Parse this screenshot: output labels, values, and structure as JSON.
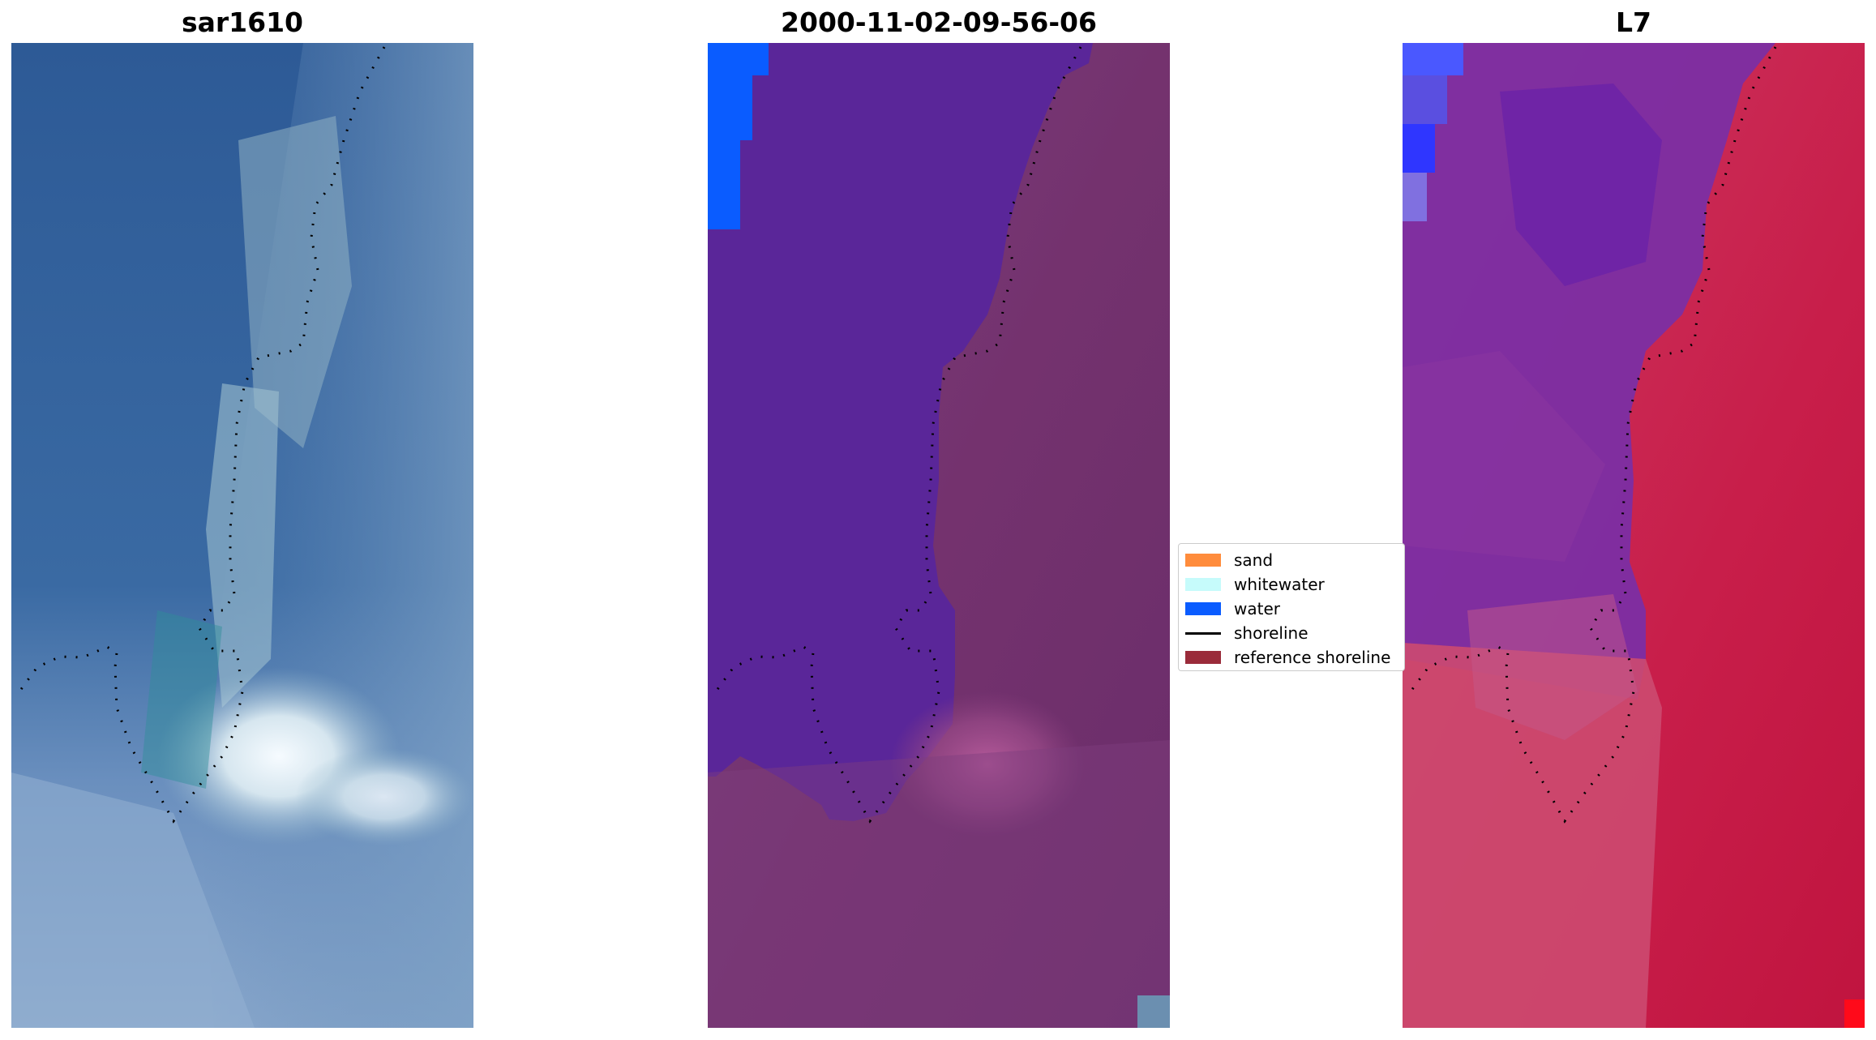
{
  "panels": [
    {
      "title": "sar1610"
    },
    {
      "title": "2000-11-02-09-56-06"
    },
    {
      "title": "L7"
    }
  ],
  "legend": {
    "items": [
      {
        "label": "sand",
        "color": "#ff8c3c",
        "kind": "patch"
      },
      {
        "label": "whitewater",
        "color": "#c6fbfb",
        "kind": "patch"
      },
      {
        "label": "water",
        "color": "#0a5cff",
        "kind": "patch"
      },
      {
        "label": "shoreline",
        "color": "#000000",
        "kind": "line"
      },
      {
        "label": "reference shoreline",
        "color": "#9a2b3a",
        "kind": "patch"
      }
    ]
  },
  "colors": {
    "rgb_deep_water": "#2f5d98",
    "rgb_shallow": "#6d93bd",
    "rgb_whitewater": "#e6f0f4",
    "class_water_body": "#5a2699",
    "class_land": "#7a3a7a",
    "class_water_blue": "#0a5cff",
    "mndwi_water": "#6b2aa6",
    "mndwi_land": "#c81e4a",
    "mndwi_bright_blue": "#3a3cff"
  }
}
